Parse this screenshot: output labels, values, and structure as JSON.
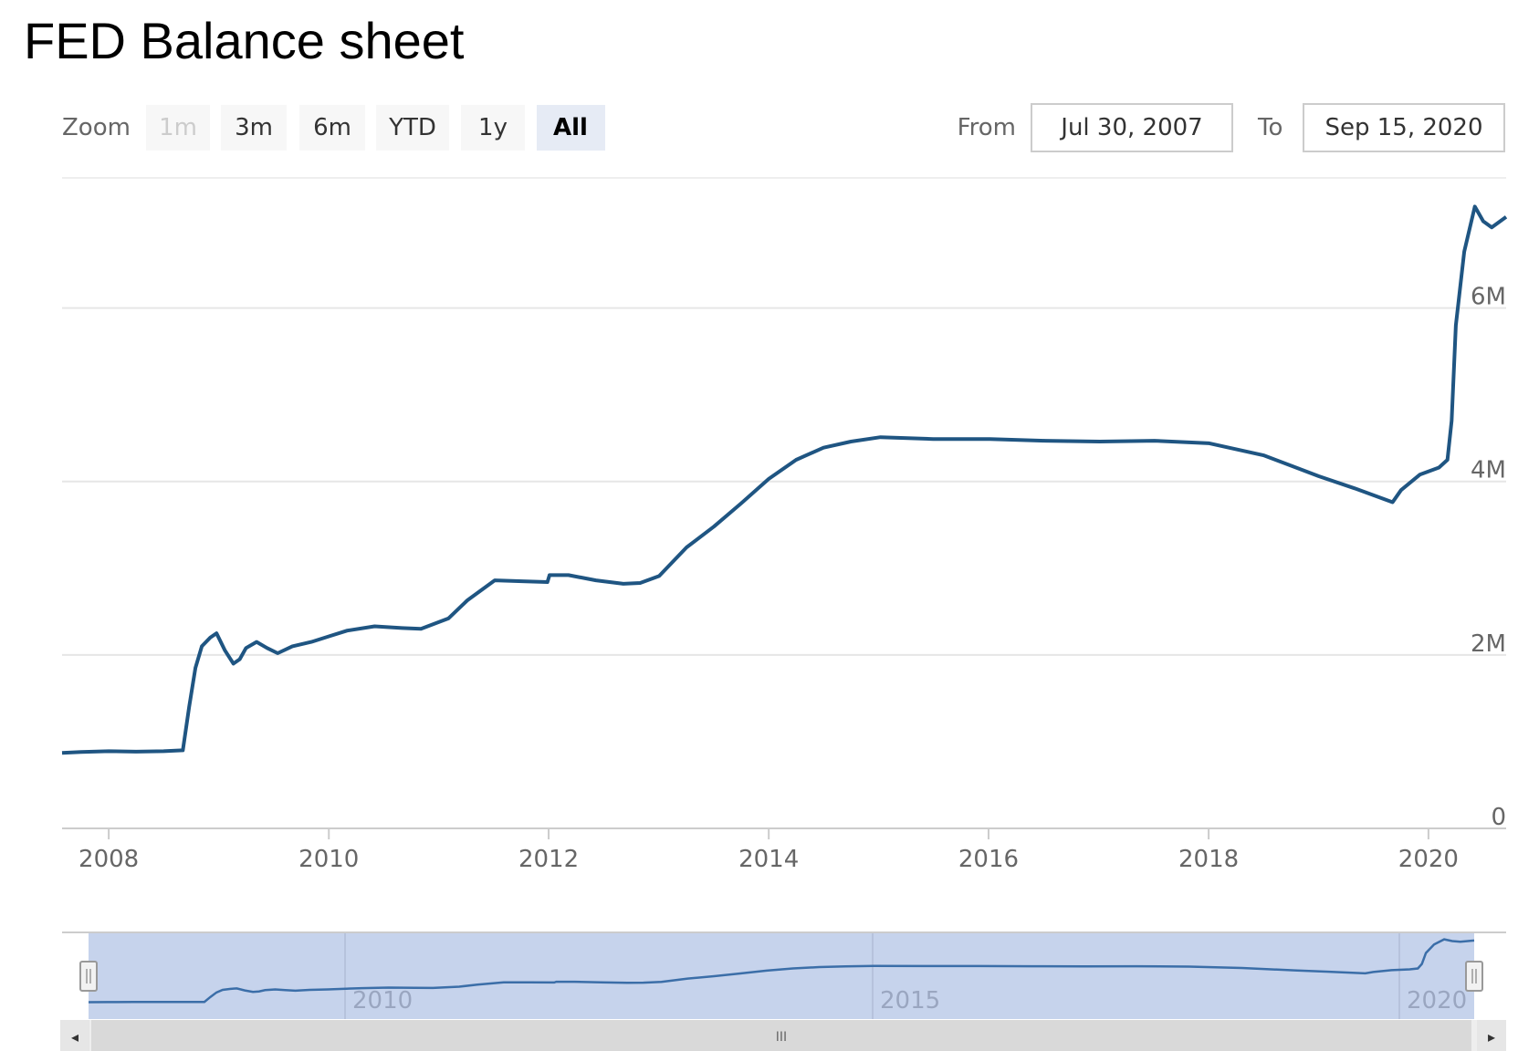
{
  "page": {
    "title": "FED Balance sheet"
  },
  "range_selector": {
    "zoom_label": "Zoom",
    "buttons": [
      {
        "label": "1m",
        "state": "disabled"
      },
      {
        "label": "3m",
        "state": "normal"
      },
      {
        "label": "6m",
        "state": "normal"
      },
      {
        "label": "YTD",
        "state": "normal"
      },
      {
        "label": "1y",
        "state": "normal"
      },
      {
        "label": "All",
        "state": "selected"
      }
    ],
    "from_label": "From",
    "from_value": "Jul 30, 2007",
    "to_label": "To",
    "to_value": "Sep 15, 2020"
  },
  "navigator": {
    "ticks": [
      "2010",
      "2015",
      "2020"
    ],
    "scrollbar_grip": "III",
    "left_arrow": "◂",
    "right_arrow": "▸"
  },
  "colors": {
    "line": "#1f5582",
    "grid": "#e6e6e6",
    "selected_button_bg": "#e6ebf5",
    "navigator_mask": "#c6d3ec",
    "navigator_line": "#3b6ea8",
    "scrollbar": "#d9d9d9"
  },
  "chart_data": {
    "type": "line",
    "title": "FED Balance sheet",
    "xlabel": "",
    "ylabel": "",
    "xlim": [
      "2007-07-30",
      "2020-09-15"
    ],
    "ylim": [
      0,
      7500000
    ],
    "yticks": [
      0,
      2000000,
      4000000,
      6000000
    ],
    "ytick_labels": [
      "0",
      "2M",
      "4M",
      "6M"
    ],
    "xticks": [
      "2008-01-01",
      "2010-01-01",
      "2012-01-01",
      "2014-01-01",
      "2016-01-01",
      "2018-01-01",
      "2020-01-01"
    ],
    "xtick_labels": [
      "2008",
      "2010",
      "2012",
      "2014",
      "2016",
      "2018",
      "2020"
    ],
    "grid": true,
    "legend": "none",
    "series": [
      {
        "points": [
          [
            "2007-07-30",
            870000
          ],
          [
            "2007-10-01",
            880000
          ],
          [
            "2008-01-01",
            890000
          ],
          [
            "2008-04-01",
            885000
          ],
          [
            "2008-07-01",
            890000
          ],
          [
            "2008-09-03",
            900000
          ],
          [
            "2008-09-24",
            1400000
          ],
          [
            "2008-10-15",
            1850000
          ],
          [
            "2008-11-05",
            2100000
          ],
          [
            "2008-12-03",
            2200000
          ],
          [
            "2008-12-24",
            2250000
          ],
          [
            "2009-01-21",
            2050000
          ],
          [
            "2009-02-18",
            1900000
          ],
          [
            "2009-03-11",
            1950000
          ],
          [
            "2009-04-01",
            2080000
          ],
          [
            "2009-05-06",
            2150000
          ],
          [
            "2009-06-10",
            2080000
          ],
          [
            "2009-07-15",
            2020000
          ],
          [
            "2009-09-02",
            2100000
          ],
          [
            "2009-11-04",
            2150000
          ],
          [
            "2010-01-06",
            2220000
          ],
          [
            "2010-03-03",
            2280000
          ],
          [
            "2010-06-02",
            2330000
          ],
          [
            "2010-09-01",
            2310000
          ],
          [
            "2010-11-03",
            2300000
          ],
          [
            "2011-02-02",
            2420000
          ],
          [
            "2011-04-06",
            2630000
          ],
          [
            "2011-07-06",
            2860000
          ],
          [
            "2011-10-05",
            2850000
          ],
          [
            "2011-12-28",
            2840000
          ],
          [
            "2012-01-04",
            2920000
          ],
          [
            "2012-03-07",
            2920000
          ],
          [
            "2012-06-06",
            2860000
          ],
          [
            "2012-09-05",
            2820000
          ],
          [
            "2012-10-31",
            2830000
          ],
          [
            "2013-01-02",
            2910000
          ],
          [
            "2013-04-03",
            3240000
          ],
          [
            "2013-07-03",
            3480000
          ],
          [
            "2013-10-02",
            3750000
          ],
          [
            "2014-01-01",
            4030000
          ],
          [
            "2014-04-02",
            4250000
          ],
          [
            "2014-07-02",
            4390000
          ],
          [
            "2014-10-01",
            4460000
          ],
          [
            "2015-01-07",
            4510000
          ],
          [
            "2015-07-01",
            4490000
          ],
          [
            "2016-01-06",
            4490000
          ],
          [
            "2016-07-06",
            4470000
          ],
          [
            "2017-01-04",
            4460000
          ],
          [
            "2017-07-05",
            4470000
          ],
          [
            "2018-01-03",
            4440000
          ],
          [
            "2018-07-04",
            4300000
          ],
          [
            "2019-01-02",
            4060000
          ],
          [
            "2019-05-01",
            3920000
          ],
          [
            "2019-09-04",
            3760000
          ],
          [
            "2019-10-02",
            3900000
          ],
          [
            "2019-12-04",
            4080000
          ],
          [
            "2020-02-05",
            4160000
          ],
          [
            "2020-03-04",
            4250000
          ],
          [
            "2020-03-18",
            4700000
          ],
          [
            "2020-04-01",
            5800000
          ],
          [
            "2020-04-29",
            6650000
          ],
          [
            "2020-06-03",
            7170000
          ],
          [
            "2020-07-01",
            7000000
          ],
          [
            "2020-07-29",
            6930000
          ],
          [
            "2020-09-15",
            7050000
          ]
        ]
      }
    ]
  }
}
